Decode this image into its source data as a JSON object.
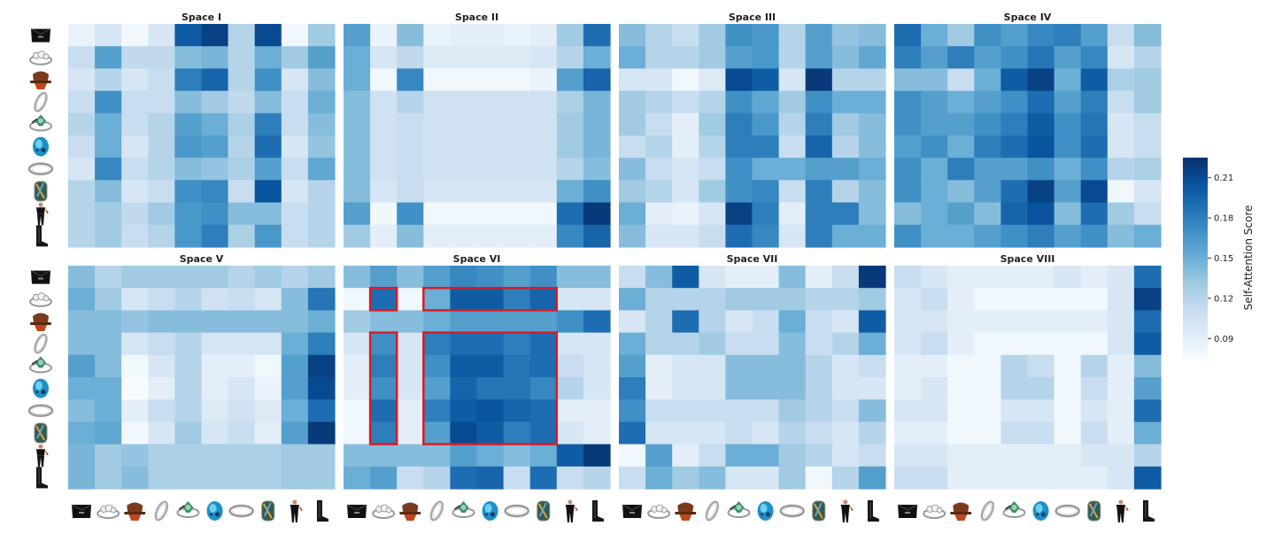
{
  "chart_data": {
    "type": "heatmap",
    "colormap": "Blues",
    "colorbar": {
      "label": "Self-Attention Score",
      "ticks": [
        "0.09",
        "0.12",
        "0.15",
        "0.18",
        "0.21"
      ],
      "min": 0.075,
      "max": 0.225
    },
    "items": [
      "black-clutch-bag-icon",
      "diamond-ring-icon",
      "red-hat-icon",
      "silver-ring-icon",
      "green-brooch-icon",
      "blue-bead-charm-icon",
      "silver-band-icon",
      "glass-bead-charm-icon",
      "black-outfit-icon",
      "black-boots-icon"
    ],
    "colors": {
      "highlight": "#e0191f",
      "low": "#f7fbff",
      "high": "#08306b"
    },
    "panels": [
      {
        "title": "Space I",
        "matrix": [
          [
            0.085,
            0.1,
            0.08,
            0.1,
            0.2,
            0.215,
            0.12,
            0.21,
            0.08,
            0.13
          ],
          [
            0.11,
            0.16,
            0.115,
            0.115,
            0.14,
            0.145,
            0.12,
            0.15,
            0.13,
            0.16
          ],
          [
            0.1,
            0.12,
            0.1,
            0.11,
            0.18,
            0.195,
            0.12,
            0.17,
            0.1,
            0.14
          ],
          [
            0.11,
            0.17,
            0.11,
            0.11,
            0.14,
            0.13,
            0.115,
            0.14,
            0.11,
            0.15
          ],
          [
            0.12,
            0.15,
            0.11,
            0.12,
            0.16,
            0.15,
            0.125,
            0.18,
            0.11,
            0.14
          ],
          [
            0.11,
            0.15,
            0.1,
            0.12,
            0.165,
            0.16,
            0.12,
            0.19,
            0.1,
            0.135
          ],
          [
            0.1,
            0.175,
            0.11,
            0.12,
            0.14,
            0.135,
            0.125,
            0.16,
            0.11,
            0.155
          ],
          [
            0.12,
            0.14,
            0.1,
            0.11,
            0.17,
            0.175,
            0.11,
            0.205,
            0.1,
            0.12
          ],
          [
            0.12,
            0.13,
            0.115,
            0.13,
            0.165,
            0.17,
            0.14,
            0.14,
            0.11,
            0.12
          ],
          [
            0.12,
            0.13,
            0.11,
            0.12,
            0.165,
            0.18,
            0.125,
            0.165,
            0.11,
            0.12
          ]
        ]
      },
      {
        "title": "Space II",
        "matrix": [
          [
            0.16,
            0.085,
            0.14,
            0.085,
            0.09,
            0.09,
            0.085,
            0.09,
            0.13,
            0.19
          ],
          [
            0.15,
            0.1,
            0.115,
            0.095,
            0.095,
            0.095,
            0.095,
            0.1,
            0.12,
            0.15
          ],
          [
            0.15,
            0.08,
            0.175,
            0.08,
            0.08,
            0.08,
            0.08,
            0.085,
            0.16,
            0.195
          ],
          [
            0.14,
            0.105,
            0.12,
            0.105,
            0.105,
            0.105,
            0.105,
            0.105,
            0.125,
            0.145
          ],
          [
            0.14,
            0.105,
            0.11,
            0.105,
            0.105,
            0.105,
            0.105,
            0.105,
            0.13,
            0.145
          ],
          [
            0.14,
            0.105,
            0.11,
            0.105,
            0.105,
            0.105,
            0.105,
            0.105,
            0.13,
            0.145
          ],
          [
            0.14,
            0.105,
            0.11,
            0.105,
            0.105,
            0.105,
            0.105,
            0.105,
            0.12,
            0.14
          ],
          [
            0.14,
            0.1,
            0.11,
            0.1,
            0.1,
            0.1,
            0.1,
            0.1,
            0.15,
            0.17
          ],
          [
            0.16,
            0.08,
            0.17,
            0.08,
            0.08,
            0.08,
            0.08,
            0.08,
            0.19,
            0.22
          ],
          [
            0.13,
            0.09,
            0.14,
            0.09,
            0.09,
            0.09,
            0.09,
            0.09,
            0.175,
            0.195
          ]
        ]
      },
      {
        "title": "Space III",
        "matrix": [
          [
            0.14,
            0.12,
            0.11,
            0.13,
            0.17,
            0.165,
            0.12,
            0.16,
            0.135,
            0.14
          ],
          [
            0.15,
            0.12,
            0.12,
            0.13,
            0.16,
            0.165,
            0.12,
            0.16,
            0.14,
            0.155
          ],
          [
            0.1,
            0.1,
            0.08,
            0.095,
            0.21,
            0.2,
            0.1,
            0.22,
            0.12,
            0.12
          ],
          [
            0.13,
            0.12,
            0.11,
            0.12,
            0.17,
            0.155,
            0.13,
            0.17,
            0.15,
            0.15
          ],
          [
            0.13,
            0.11,
            0.09,
            0.13,
            0.18,
            0.165,
            0.12,
            0.18,
            0.13,
            0.14
          ],
          [
            0.11,
            0.12,
            0.09,
            0.12,
            0.18,
            0.18,
            0.11,
            0.195,
            0.12,
            0.14
          ],
          [
            0.14,
            0.11,
            0.1,
            0.11,
            0.17,
            0.15,
            0.15,
            0.16,
            0.16,
            0.15
          ],
          [
            0.13,
            0.12,
            0.1,
            0.13,
            0.17,
            0.175,
            0.11,
            0.18,
            0.12,
            0.14
          ],
          [
            0.15,
            0.09,
            0.085,
            0.1,
            0.215,
            0.18,
            0.09,
            0.18,
            0.18,
            0.14
          ],
          [
            0.14,
            0.1,
            0.1,
            0.11,
            0.19,
            0.175,
            0.1,
            0.18,
            0.15,
            0.15
          ]
        ]
      },
      {
        "title": "Space IV",
        "matrix": [
          [
            0.19,
            0.15,
            0.13,
            0.17,
            0.16,
            0.175,
            0.18,
            0.16,
            0.11,
            0.14
          ],
          [
            0.18,
            0.16,
            0.18,
            0.16,
            0.17,
            0.185,
            0.16,
            0.175,
            0.1,
            0.12
          ],
          [
            0.14,
            0.14,
            0.11,
            0.15,
            0.2,
            0.215,
            0.15,
            0.2,
            0.125,
            0.13
          ],
          [
            0.17,
            0.16,
            0.15,
            0.16,
            0.17,
            0.19,
            0.16,
            0.18,
            0.11,
            0.13
          ],
          [
            0.17,
            0.16,
            0.16,
            0.17,
            0.18,
            0.2,
            0.17,
            0.185,
            0.1,
            0.11
          ],
          [
            0.16,
            0.17,
            0.15,
            0.18,
            0.19,
            0.205,
            0.17,
            0.19,
            0.1,
            0.11
          ],
          [
            0.17,
            0.15,
            0.18,
            0.16,
            0.16,
            0.17,
            0.15,
            0.17,
            0.12,
            0.125
          ],
          [
            0.17,
            0.15,
            0.14,
            0.16,
            0.19,
            0.215,
            0.16,
            0.21,
            0.08,
            0.1
          ],
          [
            0.14,
            0.15,
            0.16,
            0.14,
            0.195,
            0.205,
            0.14,
            0.19,
            0.13,
            0.11
          ],
          [
            0.17,
            0.15,
            0.15,
            0.16,
            0.17,
            0.18,
            0.16,
            0.17,
            0.14,
            0.15
          ]
        ]
      },
      {
        "title": "Space V",
        "matrix": [
          [
            0.14,
            0.12,
            0.13,
            0.13,
            0.13,
            0.13,
            0.12,
            0.13,
            0.12,
            0.13
          ],
          [
            0.15,
            0.13,
            0.1,
            0.11,
            0.12,
            0.105,
            0.11,
            0.1,
            0.14,
            0.185
          ],
          [
            0.14,
            0.14,
            0.135,
            0.14,
            0.14,
            0.14,
            0.14,
            0.14,
            0.14,
            0.15
          ],
          [
            0.14,
            0.14,
            0.1,
            0.11,
            0.12,
            0.1,
            0.1,
            0.1,
            0.15,
            0.18
          ],
          [
            0.16,
            0.14,
            0.08,
            0.1,
            0.12,
            0.09,
            0.09,
            0.08,
            0.16,
            0.215
          ],
          [
            0.15,
            0.15,
            0.075,
            0.09,
            0.12,
            0.09,
            0.1,
            0.085,
            0.16,
            0.21
          ],
          [
            0.14,
            0.15,
            0.09,
            0.11,
            0.12,
            0.095,
            0.105,
            0.095,
            0.15,
            0.19
          ],
          [
            0.15,
            0.155,
            0.08,
            0.1,
            0.13,
            0.1,
            0.11,
            0.09,
            0.16,
            0.22
          ],
          [
            0.145,
            0.13,
            0.135,
            0.125,
            0.125,
            0.125,
            0.125,
            0.125,
            0.13,
            0.13
          ],
          [
            0.145,
            0.13,
            0.14,
            0.125,
            0.125,
            0.125,
            0.125,
            0.125,
            0.13,
            0.13
          ]
        ]
      },
      {
        "title": "Space VI",
        "matrix": [
          [
            0.14,
            0.16,
            0.14,
            0.16,
            0.175,
            0.17,
            0.16,
            0.17,
            0.14,
            0.14
          ],
          [
            0.08,
            0.19,
            0.08,
            0.15,
            0.2,
            0.2,
            0.18,
            0.195,
            0.1,
            0.1
          ],
          [
            0.13,
            0.14,
            0.14,
            0.15,
            0.16,
            0.16,
            0.16,
            0.16,
            0.17,
            0.19
          ],
          [
            0.1,
            0.17,
            0.1,
            0.18,
            0.19,
            0.19,
            0.18,
            0.19,
            0.1,
            0.1
          ],
          [
            0.09,
            0.18,
            0.1,
            0.17,
            0.2,
            0.2,
            0.185,
            0.19,
            0.11,
            0.1
          ],
          [
            0.09,
            0.17,
            0.1,
            0.16,
            0.195,
            0.185,
            0.185,
            0.175,
            0.12,
            0.1
          ],
          [
            0.08,
            0.19,
            0.09,
            0.18,
            0.2,
            0.205,
            0.195,
            0.19,
            0.09,
            0.09
          ],
          [
            0.08,
            0.18,
            0.09,
            0.16,
            0.21,
            0.2,
            0.18,
            0.19,
            0.1,
            0.09
          ],
          [
            0.14,
            0.14,
            0.14,
            0.14,
            0.16,
            0.15,
            0.14,
            0.15,
            0.2,
            0.22
          ],
          [
            0.15,
            0.16,
            0.11,
            0.12,
            0.19,
            0.195,
            0.11,
            0.19,
            0.11,
            0.12
          ]
        ]
      },
      {
        "title": "Space VII",
        "matrix": [
          [
            0.11,
            0.14,
            0.2,
            0.1,
            0.09,
            0.09,
            0.14,
            0.09,
            0.11,
            0.22
          ],
          [
            0.15,
            0.12,
            0.12,
            0.12,
            0.13,
            0.13,
            0.13,
            0.12,
            0.12,
            0.13
          ],
          [
            0.1,
            0.12,
            0.19,
            0.12,
            0.1,
            0.11,
            0.15,
            0.11,
            0.1,
            0.2
          ],
          [
            0.15,
            0.12,
            0.12,
            0.13,
            0.11,
            0.11,
            0.14,
            0.11,
            0.12,
            0.15
          ],
          [
            0.16,
            0.09,
            0.1,
            0.1,
            0.14,
            0.14,
            0.14,
            0.12,
            0.1,
            0.11
          ],
          [
            0.18,
            0.09,
            0.1,
            0.1,
            0.14,
            0.14,
            0.14,
            0.12,
            0.1,
            0.1
          ],
          [
            0.17,
            0.11,
            0.11,
            0.11,
            0.11,
            0.11,
            0.13,
            0.12,
            0.11,
            0.14
          ],
          [
            0.19,
            0.1,
            0.1,
            0.1,
            0.11,
            0.1,
            0.12,
            0.11,
            0.1,
            0.12
          ],
          [
            0.08,
            0.16,
            0.09,
            0.11,
            0.15,
            0.15,
            0.13,
            0.12,
            0.1,
            0.11
          ],
          [
            0.11,
            0.15,
            0.13,
            0.14,
            0.1,
            0.1,
            0.13,
            0.08,
            0.12,
            0.16
          ]
        ]
      },
      {
        "title": "Space VIII",
        "matrix": [
          [
            0.11,
            0.1,
            0.09,
            0.09,
            0.09,
            0.09,
            0.1,
            0.09,
            0.1,
            0.19
          ],
          [
            0.1,
            0.11,
            0.09,
            0.08,
            0.08,
            0.08,
            0.08,
            0.08,
            0.1,
            0.215
          ],
          [
            0.1,
            0.1,
            0.09,
            0.09,
            0.09,
            0.09,
            0.09,
            0.09,
            0.1,
            0.19
          ],
          [
            0.1,
            0.11,
            0.09,
            0.08,
            0.08,
            0.08,
            0.08,
            0.08,
            0.1,
            0.2
          ],
          [
            0.09,
            0.09,
            0.08,
            0.08,
            0.12,
            0.11,
            0.08,
            0.12,
            0.09,
            0.14
          ],
          [
            0.09,
            0.1,
            0.08,
            0.08,
            0.12,
            0.12,
            0.08,
            0.11,
            0.09,
            0.16
          ],
          [
            0.1,
            0.1,
            0.08,
            0.08,
            0.1,
            0.1,
            0.08,
            0.1,
            0.09,
            0.19
          ],
          [
            0.09,
            0.09,
            0.08,
            0.08,
            0.11,
            0.11,
            0.08,
            0.11,
            0.09,
            0.15
          ],
          [
            0.1,
            0.1,
            0.09,
            0.09,
            0.09,
            0.09,
            0.09,
            0.1,
            0.1,
            0.12
          ],
          [
            0.11,
            0.11,
            0.09,
            0.09,
            0.09,
            0.09,
            0.09,
            0.09,
            0.1,
            0.2
          ]
        ]
      }
    ],
    "highlights": [
      {
        "panel": 5,
        "rows": [
          1,
          1
        ],
        "cols": [
          1,
          1
        ]
      },
      {
        "panel": 5,
        "rows": [
          1,
          1
        ],
        "cols": [
          3,
          7
        ]
      },
      {
        "panel": 5,
        "rows": [
          3,
          7
        ],
        "cols": [
          1,
          1
        ]
      },
      {
        "panel": 5,
        "rows": [
          3,
          7
        ],
        "cols": [
          3,
          7
        ]
      }
    ]
  }
}
